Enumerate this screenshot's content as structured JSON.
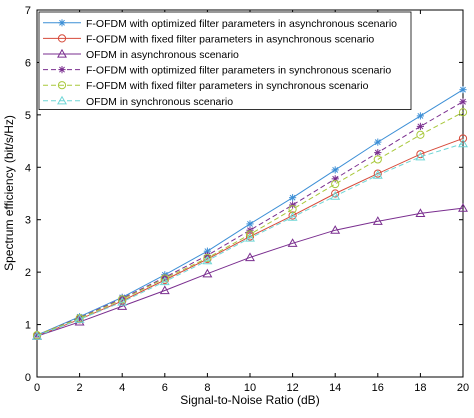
{
  "chart_data": {
    "type": "line",
    "xlabel": "Signal-to-Noise Ratio (dB)",
    "ylabel": "Spectrum efficiency (bit/s/Hz)",
    "xlim": [
      0,
      20
    ],
    "ylim": [
      0,
      7
    ],
    "x_ticks": [
      0,
      2,
      4,
      6,
      8,
      10,
      12,
      14,
      16,
      18,
      20
    ],
    "y_ticks": [
      0,
      1,
      2,
      3,
      4,
      5,
      6,
      7
    ],
    "grid": false,
    "legend_position": "top-left",
    "x": [
      0,
      2,
      4,
      6,
      8,
      10,
      12,
      14,
      16,
      18,
      20
    ],
    "series": [
      {
        "name": "F-OFDM with optimized filter parameters in asynchronous scenario",
        "color": "#3c8fd6",
        "marker": "star",
        "dashed": false,
        "values": [
          0.8,
          1.15,
          1.52,
          1.95,
          2.4,
          2.92,
          3.42,
          3.95,
          4.48,
          4.98,
          5.48
        ]
      },
      {
        "name": "F-OFDM with fixed filter parameters in asynchronous scenario",
        "color": "#d64a3a",
        "marker": "circle",
        "dashed": false,
        "values": [
          0.78,
          1.1,
          1.45,
          1.85,
          2.25,
          2.68,
          3.08,
          3.5,
          3.88,
          4.25,
          4.55
        ]
      },
      {
        "name": "OFDM in asynchronous scenario",
        "color": "#7a2e8f",
        "marker": "triangle",
        "dashed": false,
        "values": [
          0.78,
          1.05,
          1.35,
          1.65,
          1.97,
          2.28,
          2.55,
          2.8,
          2.97,
          3.12,
          3.22
        ]
      },
      {
        "name": "F-OFDM with optimized filter parameters in synchronous scenario",
        "color": "#7a2e8f",
        "marker": "star",
        "dashed": true,
        "values": [
          0.8,
          1.13,
          1.5,
          1.9,
          2.32,
          2.8,
          3.28,
          3.78,
          4.28,
          4.78,
          5.25
        ]
      },
      {
        "name": "F-OFDM with fixed filter parameters in synchronous scenario",
        "color": "#a8c83a",
        "marker": "circle",
        "dashed": true,
        "values": [
          0.8,
          1.12,
          1.48,
          1.88,
          2.27,
          2.72,
          3.2,
          3.68,
          4.15,
          4.62,
          5.05
        ]
      },
      {
        "name": "OFDM in synchronous scenario",
        "color": "#6fd6d6",
        "marker": "triangle",
        "dashed": true,
        "values": [
          0.78,
          1.1,
          1.43,
          1.82,
          2.22,
          2.65,
          3.05,
          3.45,
          3.85,
          4.2,
          4.45
        ]
      }
    ]
  }
}
